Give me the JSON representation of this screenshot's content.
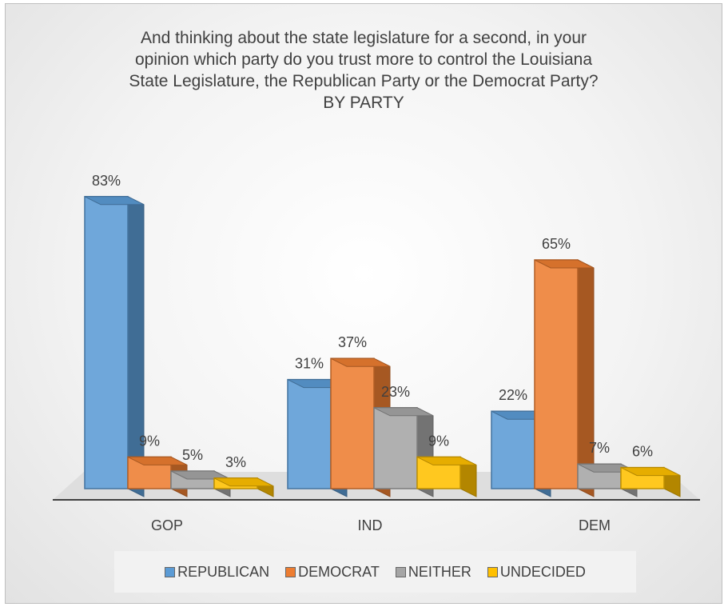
{
  "chart_data": {
    "type": "bar",
    "title": [
      "And thinking about the state legislature for a second, in your",
      "opinion which party do you trust more to control the Louisiana",
      "State Legislature, the Republican Party or the Democrat Party?",
      "BY PARTY"
    ],
    "categories": [
      "GOP",
      "IND",
      "DEM"
    ],
    "series": [
      {
        "name": "REPUBLICAN",
        "values": [
          83,
          31,
          22
        ],
        "labels": [
          "83%",
          "31%",
          "22%"
        ]
      },
      {
        "name": "DEMOCRAT",
        "values": [
          9,
          37,
          65
        ],
        "labels": [
          "9%",
          "37%",
          "65%"
        ]
      },
      {
        "name": "NEITHER",
        "values": [
          5,
          23,
          7
        ],
        "labels": [
          "5%",
          "23%",
          "7%"
        ]
      },
      {
        "name": "UNDECIDED",
        "values": [
          3,
          9,
          6
        ],
        "labels": [
          "3%",
          "9%",
          "6%"
        ]
      }
    ],
    "colors": {
      "REPUBLICAN": "#5b9bd5",
      "DEMOCRAT": "#ed7d31",
      "NEITHER": "#a5a5a5",
      "UNDECIDED": "#ffc000"
    },
    "value_format": "percent",
    "ylim": [
      0,
      90
    ],
    "legend_position": "bottom",
    "grid": false,
    "style": "3d-clustered-column"
  }
}
